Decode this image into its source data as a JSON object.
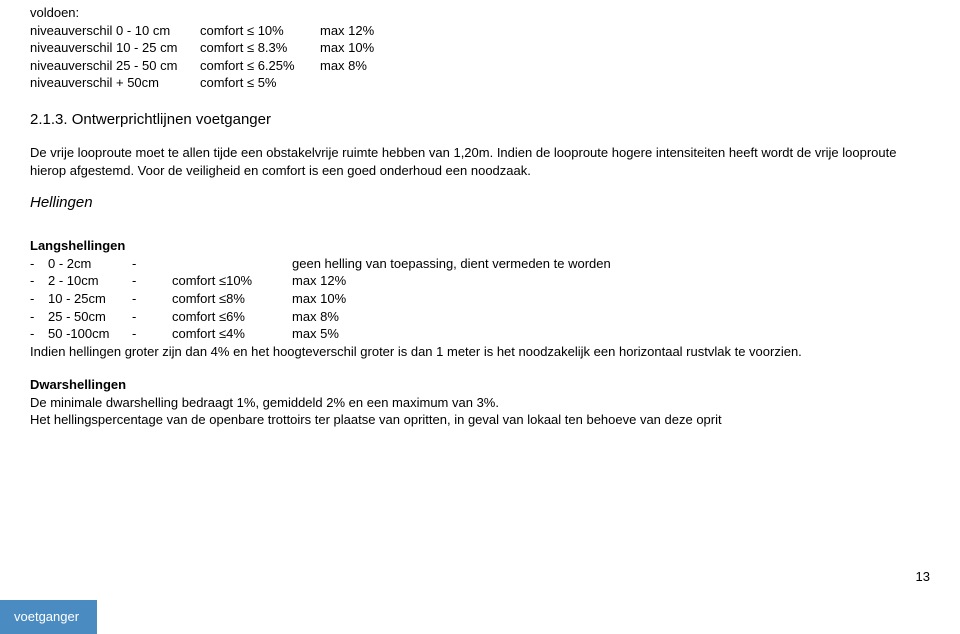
{
  "colors": {
    "text": "#000000",
    "background": "#ffffff",
    "tab_bg": "#4a8bc2",
    "tab_text": "#ffffff"
  },
  "typography": {
    "body_fontsize": 13,
    "heading_fontsize": 15,
    "font_family": "Arial"
  },
  "top_line": "voldoen:",
  "top_table": [
    {
      "c1": "niveauverschil  0 - 10 cm",
      "c2": "comfort ≤  10%",
      "c3": "max 12%"
    },
    {
      "c1": "niveauverschil 10 - 25 cm",
      "c2": "comfort ≤ 8.3%",
      "c3": "max 10%"
    },
    {
      "c1": "niveauverschil 25 - 50 cm",
      "c2": "comfort ≤ 6.25%",
      "c3": "max  8%"
    },
    {
      "c1": "niveauverschil    + 50cm",
      "c2": "comfort ≤   5%",
      "c3": ""
    }
  ],
  "section_heading": "2.1.3.   Ontwerprichtlijnen voetganger",
  "paragraph1": "De vrije looproute moet te allen tijde een obstakelvrije ruimte hebben van 1,20m. Indien de looproute hogere intensiteiten heeft wordt de vrije looproute hierop afgestemd. Voor de veiligheid en comfort is een goed onderhoud een noodzaak.",
  "hellingen_heading": "Hellingen",
  "langs_title": "Langshellingen",
  "langs_rows": [
    {
      "l0": "-",
      "l1": "  0 -    2cm",
      "l2": "-",
      "l3": "",
      "rest": "geen helling van toepassing, dient vermeden te worden"
    },
    {
      "l0": "-",
      "l1": "  2 -  10cm",
      "l2": "-",
      "l3": "comfort  ≤10%",
      "rest": "max  12%"
    },
    {
      "l0": "-",
      "l1": "10 -  25cm",
      "l2": "-",
      "l3": "comfort   ≤8%",
      "rest": "max  10%"
    },
    {
      "l0": "-",
      "l1": "25 -  50cm",
      "l2": "-",
      "l3": "comfort   ≤6%",
      "rest": "max   8%"
    },
    {
      "l0": "-",
      "l1": "50 -100cm",
      "l2": "-",
      "l3": "comfort   ≤4%",
      "rest": "max   5%"
    }
  ],
  "langs_note": "Indien hellingen groter zijn dan 4% en het hoogteverschil groter is dan 1 meter is het noodzakelijk een horizontaal rustvlak te voorzien.",
  "dwars_title": "Dwarshellingen",
  "dwars_p1": "De minimale dwarshelling bedraagt 1%, gemiddeld 2% en een maximum van 3%.",
  "dwars_p2": "Het hellingspercentage van de openbare trottoirs ter plaatse van opritten, in geval van lokaal ten behoeve van deze oprit",
  "page_number": "13",
  "tab_label": "voetganger"
}
